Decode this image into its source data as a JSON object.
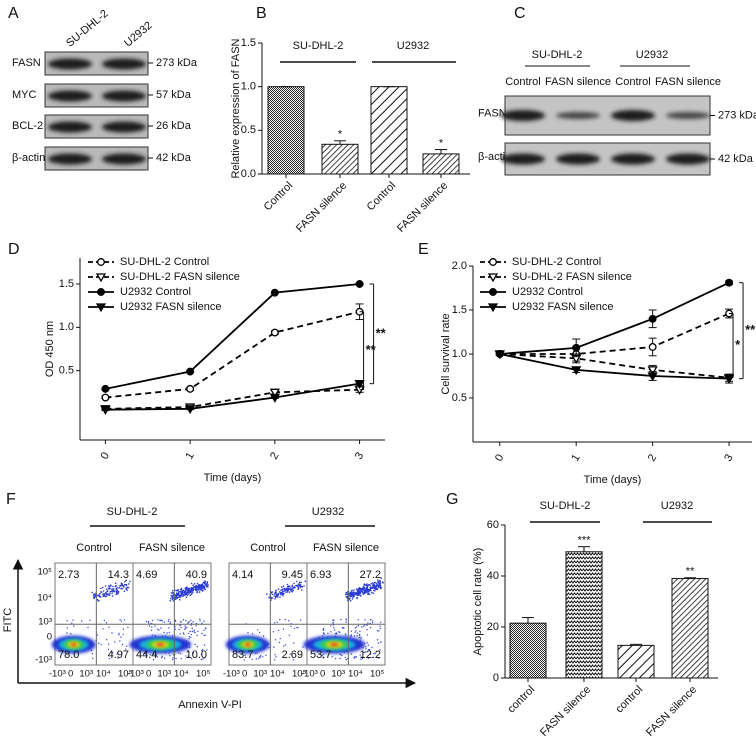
{
  "panel_labels": [
    "A",
    "B",
    "C",
    "D",
    "E",
    "F",
    "G"
  ],
  "blot_a": {
    "columns": [
      "SU-DHL-2",
      "U2932"
    ],
    "rows": [
      {
        "protein": "FASN",
        "size": "273 kDa"
      },
      {
        "protein": "MYC",
        "size": "57 kDa"
      },
      {
        "protein": "BCL-2",
        "size": "26 kDa"
      },
      {
        "protein": "β-actin",
        "size": "42 kDa"
      }
    ]
  },
  "blot_c": {
    "groups": [
      "SU-DHL-2",
      "U2932"
    ],
    "columns": [
      "Control",
      "FASN silence",
      "Control",
      "FASN silence"
    ],
    "rows": [
      {
        "protein": "FASN",
        "size": "273 kDa"
      },
      {
        "protein": "β-actin",
        "size": "42 kDa"
      }
    ]
  },
  "chart_data": [
    {
      "type": "bar",
      "y_label": "Relative expression of FASN",
      "groups": [
        "SU-DHL-2",
        "U2932"
      ],
      "categories": [
        "Control",
        "FASN silence",
        "Control",
        "FASN silence"
      ],
      "values": [
        1.0,
        0.34,
        1.0,
        0.23
      ],
      "errors": [
        0,
        0.04,
        0,
        0.05
      ],
      "significance": [
        null,
        "*",
        null,
        "*"
      ],
      "patterns": [
        "dense",
        "hatch",
        "hatch-wide",
        "hatch"
      ],
      "ylim": [
        0,
        1.5
      ],
      "yticks": [
        {
          "value": 0,
          "label": "0.0"
        },
        0.5,
        {
          "value": 1,
          "label": "1.0"
        },
        1.5
      ]
    },
    {
      "type": "line",
      "x_label": "Time (days)",
      "y_label": "OD 450 nm",
      "x": [
        0,
        1,
        2,
        3
      ],
      "xlim": [
        -0.3,
        3.3
      ],
      "xticks": [
        0,
        1,
        2,
        3
      ],
      "ylim": [
        -0.3,
        1.8
      ],
      "yticks": [
        0.5,
        {
          "value": 1,
          "label": "1.0"
        },
        1.5
      ],
      "series": [
        {
          "name": "SU-DHL-2 Control",
          "color": "#000000",
          "dashed": true,
          "marker": "open-circle",
          "values": [
            0.19,
            0.29,
            0.94,
            1.18
          ],
          "errors": [
            0.01,
            0.02,
            0.02,
            0.09
          ]
        },
        {
          "name": "SU-DHL-2 FASN silence",
          "color": "#000000",
          "dashed": true,
          "marker": "open-triangle",
          "values": [
            0.06,
            0.08,
            0.25,
            0.28
          ],
          "errors": [
            0.01,
            0.01,
            0.02,
            0.03
          ]
        },
        {
          "name": "U2932 Control",
          "color": "#000000",
          "dashed": false,
          "marker": "filled-circle",
          "values": [
            0.29,
            0.49,
            1.4,
            1.5
          ],
          "errors": [
            0.01,
            0.01,
            0.01,
            0.01
          ]
        },
        {
          "name": "U2932 FASN silence",
          "color": "#000000",
          "dashed": false,
          "marker": "filled-triangle",
          "values": [
            0.05,
            0.06,
            0.19,
            0.35
          ],
          "errors": [
            0.01,
            0.01,
            0.01,
            0.02
          ]
        }
      ],
      "significance": [
        "**",
        "**"
      ]
    },
    {
      "type": "line",
      "x_label": "Time (days)",
      "y_label": "Cell survival rate",
      "x": [
        0,
        1,
        2,
        3
      ],
      "xlim": [
        -0.35,
        3.3
      ],
      "xticks": [
        0,
        1,
        2,
        3
      ],
      "ylim": [
        0,
        2
      ],
      "yticks": [
        0.5,
        {
          "value": 1,
          "label": "1.0"
        },
        1.5,
        {
          "value": 2,
          "label": "2.0"
        }
      ],
      "series": [
        {
          "name": "SU-DHL-2 Control",
          "color": "#000000",
          "dashed": true,
          "marker": "open-circle",
          "values": [
            1.0,
            1.0,
            1.08,
            1.46
          ],
          "errors": [
            0.01,
            0.08,
            0.1,
            0.05
          ]
        },
        {
          "name": "SU-DHL-2 FASN silence",
          "color": "#000000",
          "dashed": true,
          "marker": "open-triangle",
          "values": [
            1.0,
            0.95,
            0.82,
            0.73
          ],
          "errors": [
            0.01,
            0.05,
            0.05,
            0.04
          ]
        },
        {
          "name": "U2932 Control",
          "color": "#000000",
          "dashed": false,
          "marker": "filled-circle",
          "values": [
            1.0,
            1.07,
            1.4,
            1.81
          ],
          "errors": [
            0.01,
            0.1,
            0.1,
            0.02
          ]
        },
        {
          "name": "U2932 FASN silence",
          "color": "#000000",
          "dashed": false,
          "marker": "filled-triangle",
          "values": [
            1.0,
            0.82,
            0.75,
            0.72
          ],
          "errors": [
            0.01,
            0.03,
            0.05,
            0.05
          ]
        }
      ],
      "significance": [
        "**",
        "*"
      ]
    },
    {
      "type": "bar",
      "y_label": "Apoptotic cell rate (%)",
      "groups": [
        "SU-DHL-2",
        "U2932"
      ],
      "categories": [
        "control",
        "FASN silence",
        "control",
        "FASN silence"
      ],
      "values": [
        21.5,
        49.5,
        12.8,
        39.0
      ],
      "errors": [
        2.2,
        2.0,
        0.4,
        0.3
      ],
      "significance": [
        null,
        "***",
        null,
        "**"
      ],
      "patterns": [
        "dense",
        "zigzag",
        "hatch-wide",
        "hatch"
      ],
      "ylim": [
        0,
        60
      ],
      "yticks": [
        0,
        20,
        40,
        60
      ]
    }
  ],
  "flow_f": {
    "x_label": "Annexin V-PI",
    "y_label": "FITC",
    "groups": [
      "SU-DHL-2",
      "U2932"
    ],
    "columns": [
      "Control",
      "FASN silence",
      "Control",
      "FASN silence"
    ],
    "y_ticks": [
      "10⁵",
      "10⁴",
      "10³",
      "0",
      "-10³"
    ],
    "x_ticks": [
      "-10³",
      "0",
      "10³",
      "10⁴",
      "10⁵"
    ],
    "plots": [
      {
        "ul": "2.73",
        "ur": "14.3",
        "ll": "78.0",
        "lr": "4.97"
      },
      {
        "ul": "4.69",
        "ur": "40.9",
        "ll": "44.4",
        "lr": "10.0"
      },
      {
        "ul": "4.14",
        "ur": "9.45",
        "ll": "83.7",
        "lr": "2.69"
      },
      {
        "ul": "6.93",
        "ur": "27.2",
        "ll": "53.7",
        "lr": "12.2"
      }
    ]
  }
}
